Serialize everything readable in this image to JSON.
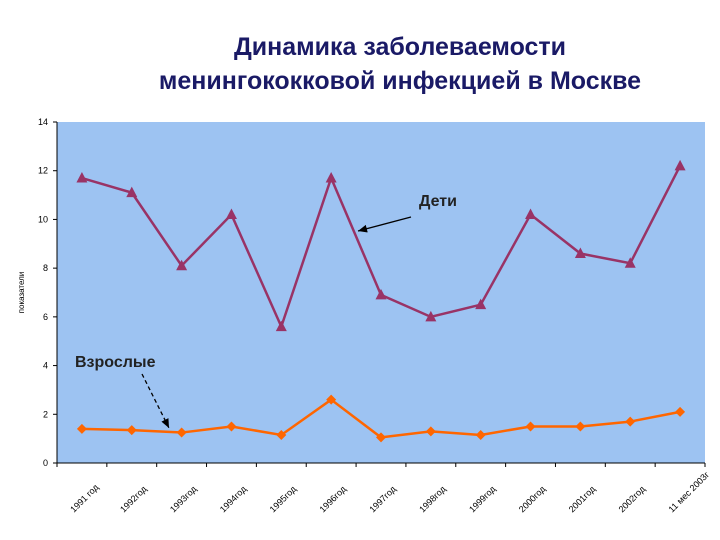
{
  "title_line1": "Динамика заболеваемости",
  "title_line2": "менингококковой инфекцией в Москве",
  "chart_data": {
    "type": "line",
    "title": "Динамика заболеваемости менингококковой инфекцией в Москве",
    "xlabel": "",
    "ylabel": "показатели",
    "ylim": [
      0,
      14
    ],
    "yticks": [
      0,
      2,
      4,
      6,
      8,
      10,
      12,
      14
    ],
    "grid": false,
    "background": "#9dc3f2",
    "categories": [
      "1991 год",
      "1992год",
      "1993год",
      "1994год",
      "1995год",
      "1996год",
      "1997год",
      "1998год",
      "1999год",
      "2000год",
      "2001год",
      "2002год",
      "11 мес 2003г"
    ],
    "series": [
      {
        "name": "Дети",
        "color": "#993366",
        "marker": "triangle",
        "values": [
          11.7,
          11.1,
          8.1,
          10.2,
          5.6,
          11.7,
          6.9,
          6.0,
          6.5,
          10.2,
          8.6,
          8.2,
          12.2
        ]
      },
      {
        "name": "Взрослые",
        "color": "#ff6600",
        "marker": "diamond",
        "values": [
          1.4,
          1.35,
          1.25,
          1.5,
          1.15,
          2.6,
          1.05,
          1.3,
          1.15,
          1.5,
          1.5,
          1.7,
          2.1
        ]
      }
    ],
    "annotations": [
      "Дети",
      "Взрослые"
    ]
  }
}
